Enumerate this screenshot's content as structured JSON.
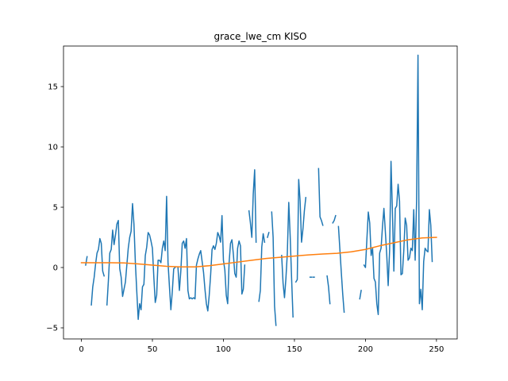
{
  "chart_data": {
    "type": "line",
    "title": "grace_lwe_cm KISO",
    "xlabel": "",
    "ylabel": "",
    "xlim": [
      -12.6,
      264.6
    ],
    "ylim": [
      -5.92,
      18.36
    ],
    "x_ticks": [
      0,
      50,
      100,
      150,
      200,
      250
    ],
    "y_ticks": [
      -5,
      0,
      5,
      10,
      15
    ],
    "grid": false,
    "legend": "none",
    "series": [
      {
        "color": "#1f77b4",
        "points": [
          [
            3,
            0.2
          ],
          [
            4,
            0.9
          ],
          null,
          [
            7,
            -3.1
          ],
          [
            8,
            -1.6
          ],
          [
            9,
            -0.8
          ],
          [
            10,
            0.3
          ],
          [
            11,
            1.2
          ],
          [
            12,
            1.5
          ],
          [
            13,
            2.4
          ],
          [
            14,
            2.0
          ],
          [
            15,
            -0.3
          ],
          [
            16,
            -0.7
          ],
          null,
          [
            18,
            -3.1
          ],
          [
            19,
            -1.1
          ],
          [
            20,
            1.2
          ],
          [
            21,
            1.5
          ],
          [
            22,
            3.1
          ],
          [
            23,
            1.9
          ],
          [
            24,
            2.7
          ],
          [
            25,
            3.6
          ],
          [
            26,
            3.9
          ],
          [
            27,
            -0.1
          ],
          [
            28,
            -0.8
          ],
          [
            29,
            -2.4
          ],
          [
            30,
            -1.8
          ],
          [
            31,
            -1.2
          ],
          [
            32,
            0.2
          ],
          [
            33,
            1.6
          ],
          [
            34,
            2.5
          ],
          [
            35,
            3.0
          ],
          [
            36,
            5.3
          ],
          [
            37,
            3.6
          ],
          [
            38,
            0.4
          ],
          [
            39,
            -2.0
          ],
          [
            40,
            -4.3
          ],
          [
            41,
            -3.0
          ],
          [
            42,
            -3.5
          ],
          [
            43,
            -1.6
          ],
          [
            44,
            -1.4
          ],
          [
            45,
            1.0
          ],
          [
            46,
            1.7
          ],
          [
            47,
            2.9
          ],
          [
            48,
            2.7
          ],
          [
            49,
            2.2
          ],
          [
            50,
            1.6
          ],
          [
            51,
            -0.8
          ],
          [
            52,
            -2.9
          ],
          [
            53,
            -2.3
          ],
          [
            54,
            0.6
          ],
          [
            55,
            0.6
          ],
          [
            56,
            0.4
          ],
          [
            57,
            1.6
          ],
          [
            58,
            2.2
          ],
          [
            59,
            1.4
          ],
          [
            60,
            5.9
          ],
          [
            61,
            0.4
          ],
          [
            62,
            -1.6
          ],
          [
            63,
            -3.5
          ],
          [
            64,
            -2.0
          ],
          [
            65,
            -0.1
          ],
          [
            66,
            0.0
          ],
          null,
          [
            68,
            0.0
          ],
          [
            69,
            -1.9
          ],
          [
            70,
            -0.3
          ],
          [
            71,
            2.0
          ],
          [
            72,
            2.2
          ],
          [
            73,
            1.6
          ],
          [
            74,
            2.4
          ],
          [
            75,
            -1.9
          ],
          [
            76,
            -2.6
          ],
          [
            77,
            -2.5
          ],
          [
            78,
            -2.6
          ],
          [
            79,
            -2.5
          ],
          [
            80,
            -2.6
          ],
          [
            81,
            0.2
          ],
          [
            82,
            0.7
          ],
          [
            83,
            1.1
          ],
          [
            84,
            1.4
          ],
          [
            85,
            0.5
          ],
          [
            86,
            -0.4
          ],
          [
            87,
            -1.8
          ],
          [
            88,
            -3.0
          ],
          [
            89,
            -3.6
          ],
          [
            90,
            -2.3
          ],
          [
            91,
            -0.6
          ],
          [
            92,
            1.5
          ],
          [
            93,
            1.8
          ],
          [
            94,
            1.5
          ],
          [
            95,
            2.0
          ],
          [
            96,
            2.9
          ],
          [
            97,
            2.6
          ],
          [
            98,
            2.1
          ],
          [
            99,
            4.3
          ],
          [
            100,
            0.6
          ],
          [
            101,
            -0.2
          ],
          [
            102,
            -2.3
          ],
          [
            103,
            -3.0
          ],
          [
            104,
            0.4
          ],
          [
            105,
            2.0
          ],
          [
            106,
            2.3
          ],
          [
            107,
            1.1
          ],
          [
            108,
            -0.5
          ],
          [
            109,
            -0.8
          ],
          [
            110,
            1.6
          ],
          [
            111,
            2.2
          ],
          [
            112,
            1.8
          ],
          [
            113,
            -2.2
          ],
          [
            114,
            -1.8
          ],
          [
            115,
            0.2
          ],
          null,
          [
            118,
            4.7
          ],
          [
            119,
            3.7
          ],
          [
            120,
            2.5
          ],
          [
            121,
            6.1
          ],
          [
            122,
            8.1
          ],
          [
            123,
            2.1
          ],
          null,
          [
            125,
            -2.8
          ],
          [
            126,
            -1.9
          ],
          [
            127,
            1.7
          ],
          [
            128,
            2.8
          ],
          [
            129,
            2.1
          ],
          null,
          [
            131,
            2.5
          ],
          [
            132,
            2.9
          ],
          null,
          [
            134,
            4.6
          ],
          [
            135,
            2.5
          ],
          [
            136,
            -3.2
          ],
          [
            137,
            -4.8
          ],
          null,
          [
            141,
            1.0
          ],
          [
            142,
            -1.3
          ],
          [
            143,
            -2.5
          ],
          [
            144,
            -0.9
          ],
          [
            145,
            1.2
          ],
          [
            146,
            5.4
          ],
          [
            147,
            2.6
          ],
          [
            148,
            -0.9
          ],
          [
            149,
            -4.1
          ],
          null,
          [
            151,
            -1.2
          ],
          [
            152,
            -1.0
          ],
          [
            153,
            7.3
          ],
          [
            154,
            5.5
          ],
          [
            155,
            2.1
          ],
          [
            156,
            3.2
          ],
          [
            157,
            4.7
          ],
          [
            158,
            5.8
          ],
          null,
          [
            161,
            -0.8
          ],
          [
            162,
            -0.8
          ],
          null,
          [
            163,
            -0.8
          ],
          [
            164,
            -0.8
          ],
          null,
          [
            167,
            8.2
          ],
          [
            168,
            4.2
          ],
          [
            169,
            3.9
          ],
          [
            170,
            3.5
          ],
          null,
          [
            173,
            -0.7
          ],
          [
            174,
            -1.6
          ],
          [
            175,
            -3.0
          ],
          null,
          [
            177,
            3.7
          ],
          [
            178,
            3.9
          ],
          [
            179,
            4.3
          ],
          null,
          [
            181,
            3.4
          ],
          [
            182,
            1.5
          ],
          [
            183,
            -0.4
          ],
          [
            184,
            -2.2
          ],
          [
            185,
            -3.7
          ],
          null,
          [
            196,
            -2.6
          ],
          [
            197,
            -1.9
          ],
          null,
          [
            199,
            0.2
          ],
          [
            200,
            0.0
          ],
          [
            201,
            2.3
          ],
          [
            202,
            4.6
          ],
          [
            203,
            3.7
          ],
          [
            204,
            1.0
          ],
          [
            205,
            1.6
          ],
          [
            206,
            -0.9
          ],
          [
            207,
            -1.2
          ],
          [
            208,
            -3.0
          ],
          [
            209,
            -3.9
          ],
          [
            210,
            1.2
          ],
          [
            211,
            1.6
          ],
          [
            212,
            3.4
          ],
          [
            213,
            4.9
          ],
          [
            214,
            3.0
          ],
          [
            215,
            1.0
          ],
          [
            216,
            -1.5
          ],
          [
            217,
            1.4
          ],
          [
            218,
            8.8
          ],
          [
            219,
            4.6
          ],
          [
            220,
            -0.3
          ],
          [
            221,
            4.9
          ],
          [
            222,
            5.1
          ],
          [
            223,
            6.9
          ],
          [
            224,
            5.5
          ],
          [
            225,
            -0.6
          ],
          [
            226,
            -0.5
          ],
          [
            227,
            1.4
          ],
          [
            228,
            4.1
          ],
          [
            229,
            3.5
          ],
          [
            230,
            0.6
          ],
          [
            231,
            0.8
          ],
          [
            232,
            1.6
          ],
          [
            233,
            1.4
          ],
          [
            234,
            4.8
          ],
          [
            235,
            0.6
          ],
          [
            236,
            5.5
          ],
          [
            237,
            17.6
          ],
          [
            238,
            -3.0
          ],
          [
            239,
            -1.8
          ],
          [
            240,
            -3.5
          ],
          [
            241,
            0.5
          ],
          [
            242,
            1.6
          ],
          [
            243,
            1.4
          ],
          [
            244,
            1.3
          ],
          [
            245,
            4.8
          ],
          [
            246,
            3.5
          ],
          [
            247,
            0.5
          ]
        ]
      },
      {
        "color": "#ff7f0e",
        "points": [
          [
            0,
            0.4
          ],
          [
            10,
            0.4
          ],
          [
            20,
            0.4
          ],
          [
            30,
            0.38
          ],
          [
            40,
            0.3
          ],
          [
            50,
            0.2
          ],
          [
            60,
            0.1
          ],
          [
            70,
            0.05
          ],
          [
            80,
            0.05
          ],
          [
            90,
            0.15
          ],
          [
            100,
            0.3
          ],
          [
            110,
            0.45
          ],
          [
            120,
            0.6
          ],
          [
            130,
            0.75
          ],
          [
            140,
            0.85
          ],
          [
            150,
            0.95
          ],
          [
            160,
            1.05
          ],
          [
            170,
            1.12
          ],
          [
            180,
            1.18
          ],
          [
            190,
            1.3
          ],
          [
            200,
            1.5
          ],
          [
            210,
            1.8
          ],
          [
            220,
            2.05
          ],
          [
            230,
            2.3
          ],
          [
            240,
            2.45
          ],
          [
            250,
            2.5
          ]
        ]
      }
    ]
  }
}
